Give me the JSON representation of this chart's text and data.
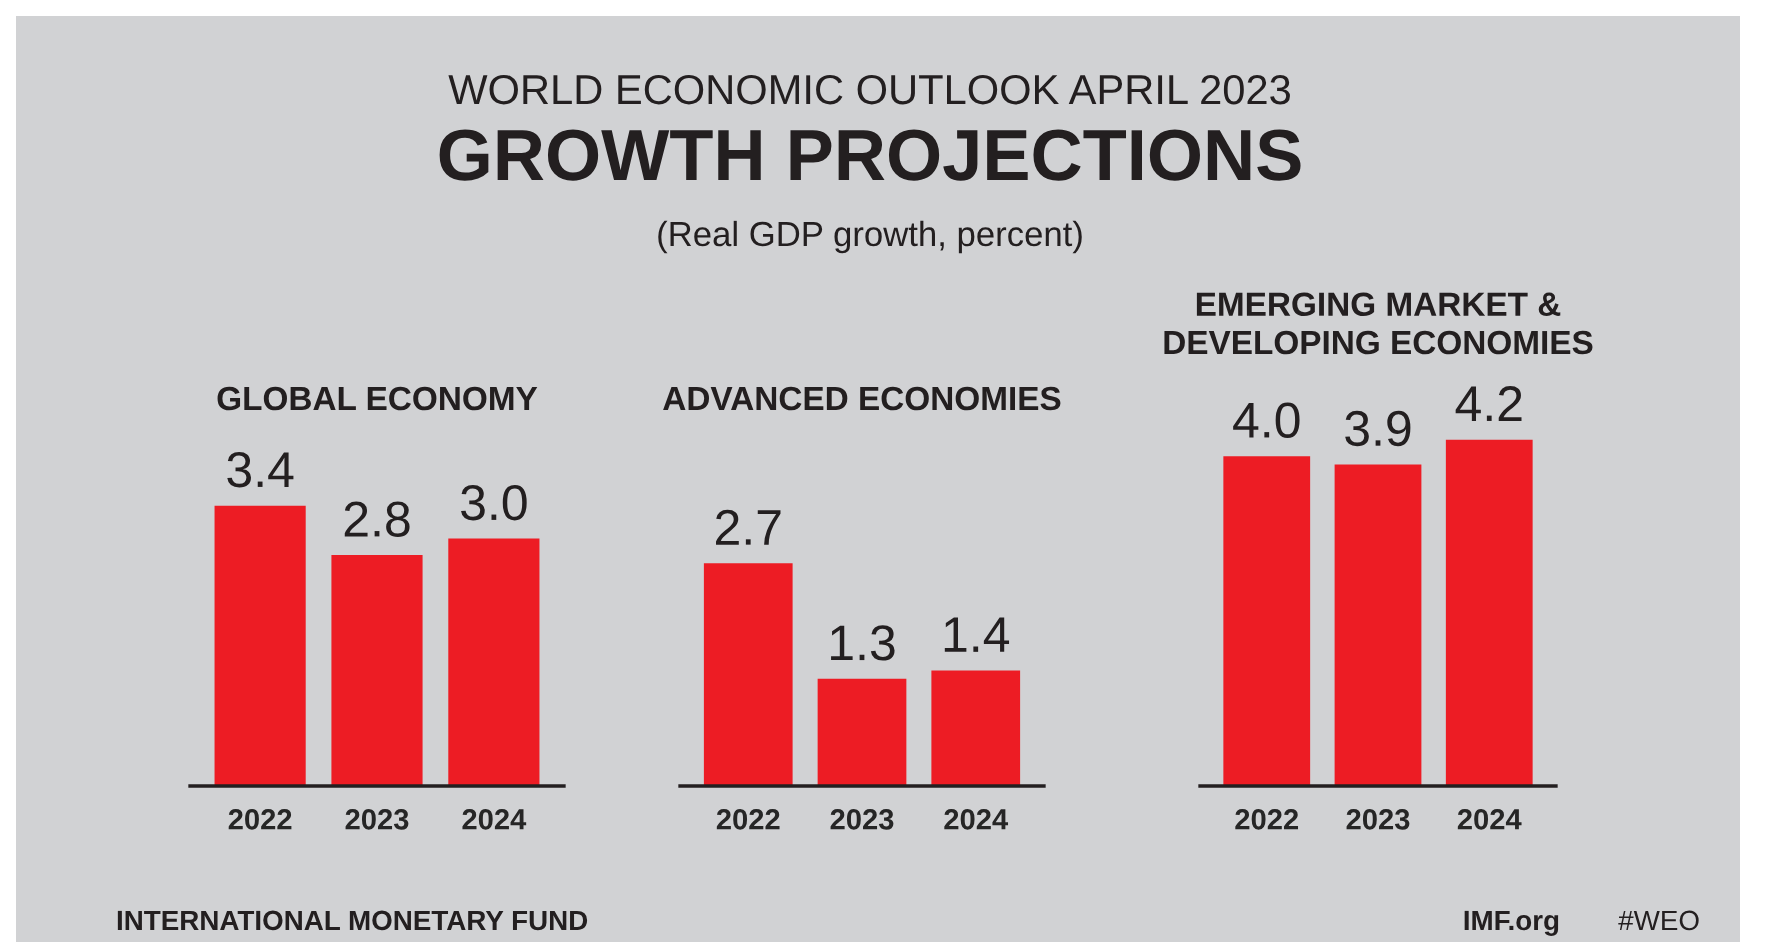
{
  "chart_data": [
    {
      "type": "other",
      "title": "GROWTH PROJECTIONS",
      "annotations": [
        "WORLD ECONOMIC OUTLOOK APRIL 2023",
        "(Real GDP growth, percent)",
        "INTERNATIONAL MONETARY FUND",
        "IMF.org",
        "#WEO"
      ]
    },
    {
      "type": "bar",
      "title": "GLOBAL ECONOMY",
      "categories": [
        "2022",
        "2023",
        "2024"
      ],
      "values": [
        3.4,
        2.8,
        3.0
      ],
      "value_labels": [
        "3.4",
        "2.8",
        "3.0"
      ],
      "color": "#ed1c24"
    },
    {
      "type": "bar",
      "title": "ADVANCED ECONOMIES",
      "categories": [
        "2022",
        "2023",
        "2024"
      ],
      "values": [
        2.7,
        1.3,
        1.4
      ],
      "value_labels": [
        "2.7",
        "1.3",
        "1.4"
      ],
      "color": "#ed1c24"
    },
    {
      "type": "bar",
      "title": "EMERGING MARKET &\nDEVELOPING ECONOMIES",
      "categories": [
        "2022",
        "2023",
        "2024"
      ],
      "values": [
        4.0,
        3.9,
        4.2
      ],
      "value_labels": [
        "4.0",
        "3.9",
        "4.2"
      ],
      "color": "#ed1c24"
    }
  ]
}
